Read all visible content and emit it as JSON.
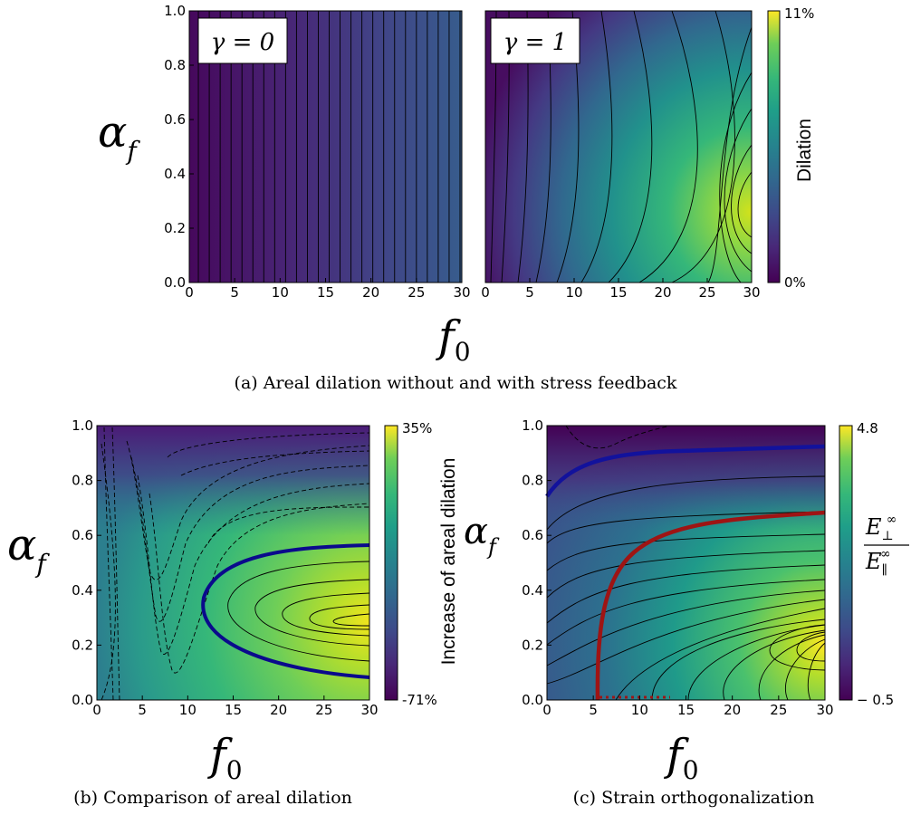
{
  "captions": {
    "a": "(a)  Areal dilation without and with stress feedback",
    "b": "(b)  Comparison of areal dilation",
    "c": "(c)  Strain orthogonalization"
  },
  "chart_data": [
    {
      "type": "heatmap",
      "panel": "a-left",
      "annotation": "γ = 0",
      "xlabel": "f0",
      "ylabel": "αf",
      "xlim": [
        0,
        30
      ],
      "ylim": [
        0,
        1
      ],
      "x_ticks": [
        "0",
        "5",
        "10",
        "15",
        "20",
        "25",
        "30"
      ],
      "y_ticks": [
        "0.0",
        "0.2",
        "0.4",
        "0.6",
        "0.8",
        "1.0"
      ],
      "colormap": "viridis",
      "contours": "vertical solid black lines, dilation depends only on f0",
      "value_range": [
        "0%",
        "11%"
      ]
    },
    {
      "type": "heatmap",
      "panel": "a-right",
      "annotation": "γ = 1",
      "xlim": [
        0,
        30
      ],
      "ylim": [
        0,
        1
      ],
      "x_ticks": [
        "0",
        "5",
        "10",
        "15",
        "20",
        "25",
        "30"
      ],
      "colormap": "viridis",
      "peak": {
        "f0": 30,
        "alpha_f": 0.25
      },
      "colorbar": {
        "label": "Dilation",
        "max": "11%",
        "min": "0%"
      }
    },
    {
      "type": "heatmap",
      "panel": "b",
      "xlabel": "f0",
      "ylabel": "αf",
      "xlim": [
        0,
        30
      ],
      "ylim": [
        0,
        1
      ],
      "x_ticks": [
        "0",
        "5",
        "10",
        "15",
        "20",
        "25",
        "30"
      ],
      "y_ticks": [
        "0.0",
        "0.2",
        "0.4",
        "0.6",
        "0.8",
        "1.0"
      ],
      "colormap": "viridis",
      "peak": {
        "f0": 30,
        "alpha_f": 0.28
      },
      "zero_contour_color": "#0a0a8c",
      "contours": "solid for positive, dashed for negative",
      "colorbar": {
        "label": "Increase of areal dilation",
        "max": "35%",
        "min": "-71%"
      }
    },
    {
      "type": "heatmap",
      "panel": "c",
      "xlabel": "f0",
      "ylabel": "αf",
      "xlim": [
        0,
        30
      ],
      "ylim": [
        0,
        1
      ],
      "x_ticks": [
        "0",
        "5",
        "10",
        "15",
        "20",
        "25",
        "30"
      ],
      "y_ticks": [
        "0.0",
        "0.2",
        "0.4",
        "0.6",
        "0.8",
        "1.0"
      ],
      "colormap": "viridis",
      "peak": {
        "f0": 30,
        "alpha_f": 0.2
      },
      "blue_contour_color": "#12129c",
      "red_contour_color": "#9e1414",
      "colorbar": {
        "label": "E⊥∞ / E∥∞",
        "max": "4.8",
        "min": "− 0.5"
      }
    }
  ]
}
